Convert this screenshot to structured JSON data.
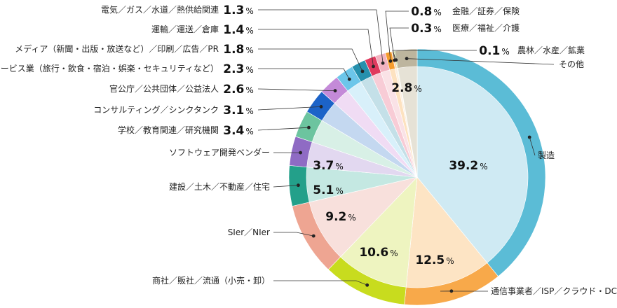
{
  "chart_data": {
    "type": "pie",
    "title": "",
    "categories": [
      "製造",
      "通信事業者／ISP／クラウド・DC",
      "商社／販社／流通（小売・卸）",
      "SIer／NIer",
      "建設／土木／不動産／住宅",
      "ソフトウェア開発ベンダー",
      "学校／教育関連／研究機関",
      "コンサルティング／シンクタンク",
      "官公庁／公共団体／公益法人",
      "サービス業（旅行・飲食・宿泊・娯楽・セキュリティなど）",
      "メディア（新聞・出版・放送など）／印刷／広告／PR",
      "運輸／運送／倉庫",
      "電気／ガス／水道／熱供給関連",
      "金融／証券／保険",
      "医療／福祉／介護",
      "農林／水産／鉱業",
      "その他"
    ],
    "values": [
      39.2,
      12.5,
      10.6,
      9.2,
      5.1,
      3.7,
      3.4,
      3.1,
      2.6,
      2.3,
      1.8,
      1.4,
      1.3,
      0.8,
      0.3,
      0.1,
      2.8
    ],
    "value_labels": [
      "39.2",
      "12.5",
      "10.6",
      "9.2",
      "5.1",
      "3.7",
      "3.4",
      "3.1",
      "2.6",
      "2.3",
      "1.8",
      "1.4",
      "1.3",
      "0.8",
      "0.3",
      "0.1",
      "2.8"
    ],
    "unit": "%",
    "outer_colors": [
      "#5bbcd6",
      "#f8a94a",
      "#c8dc1e",
      "#eea592",
      "#23a08a",
      "#8f6bc4",
      "#6cc49f",
      "#1c63c8",
      "#c48ad8",
      "#6cc6ea",
      "#2590ad",
      "#e03a5e",
      "#f2b3c0",
      "#f59c2c",
      "#f8d8b4",
      "#88c83c",
      "#bdb59e"
    ],
    "inner_colors": [
      "#cfeaf3",
      "#fde4c4",
      "#eef4c0",
      "#f8e0dc",
      "#c4e8e2",
      "#e2d8f0",
      "#d8f0e6",
      "#c4d8f0",
      "#f0dcf4",
      "#d8f0fa",
      "#c4e0e8",
      "#f8ccd6",
      "#fae2e6",
      "#fde2c0",
      "#fcefe0",
      "#e0f0cc",
      "#e6e2d6"
    ],
    "legend": "none"
  }
}
